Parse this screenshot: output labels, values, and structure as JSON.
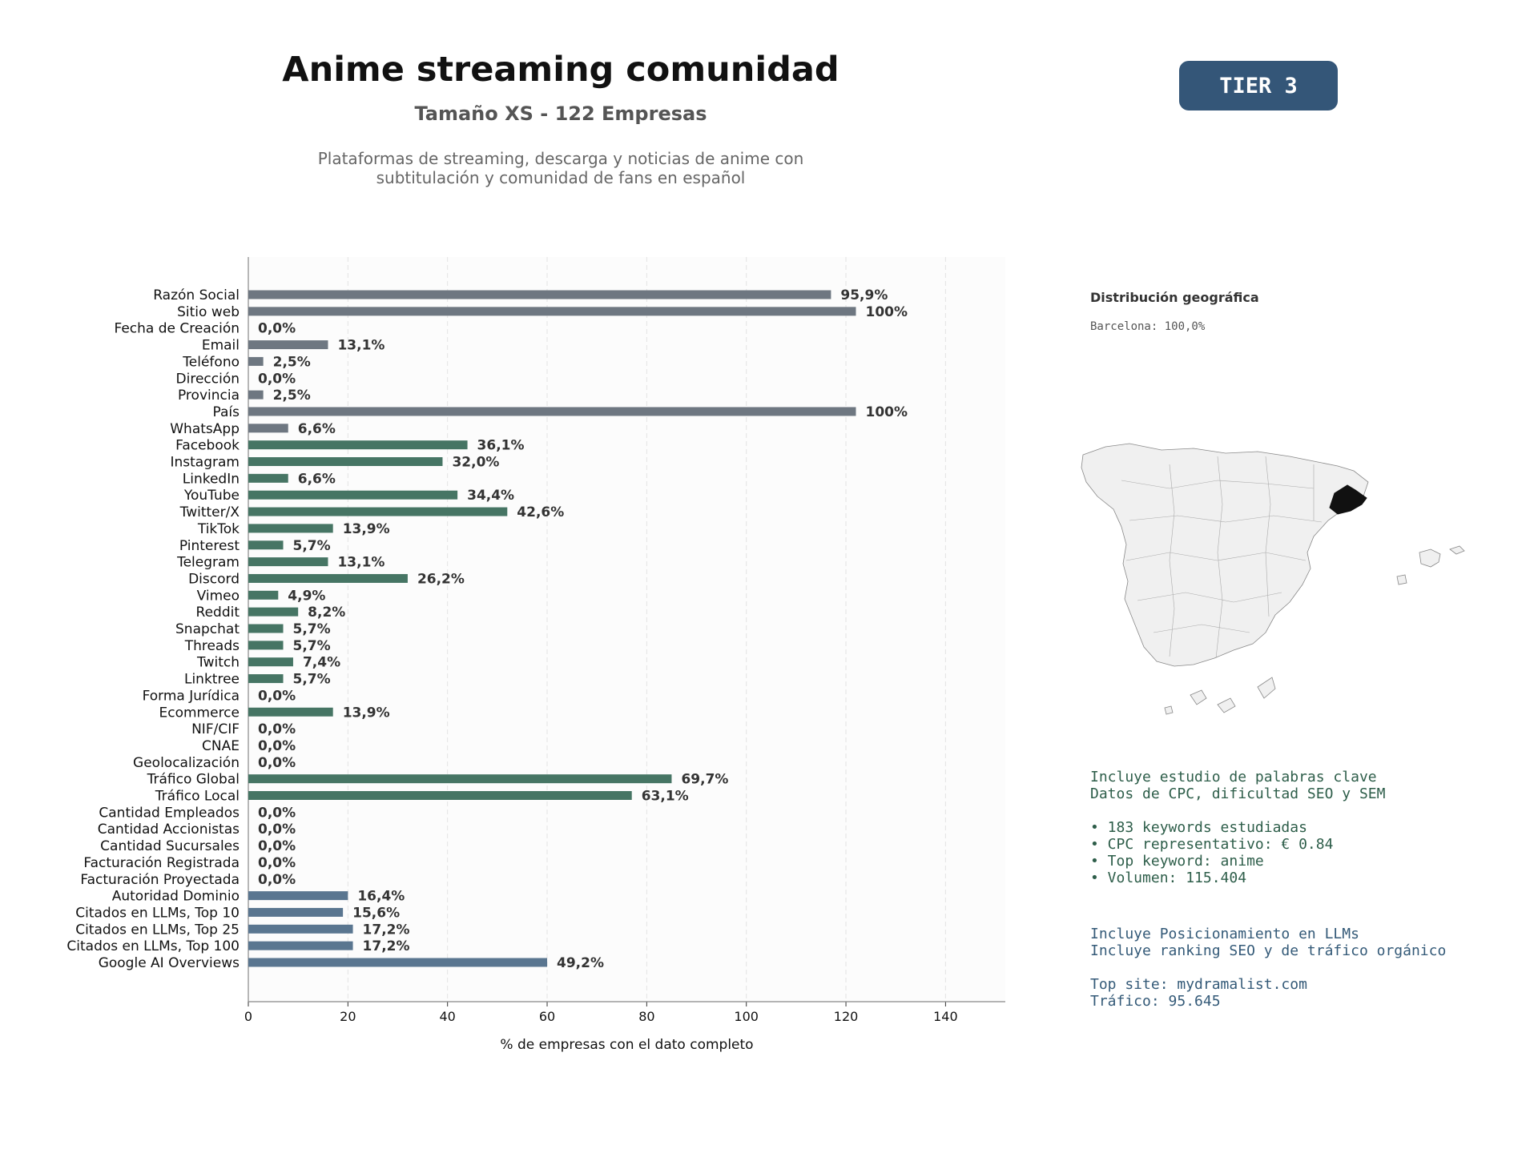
{
  "header": {
    "title": "Anime streaming comunidad",
    "subtitle": "Tamaño XS - 122 Empresas",
    "description_line1": "Plataformas de streaming, descarga y noticias de anime con",
    "description_line2": "subtitulación y comunidad de fans en español",
    "tier": "TIER 3"
  },
  "colors": {
    "gray": "#6e7781",
    "green": "#467564",
    "blue": "#5a7690",
    "tier_bg": "#345678",
    "region_highlight": "#111111",
    "region_fill": "#f0f0f0"
  },
  "chart_data": {
    "type": "bar",
    "orientation": "horizontal",
    "xlabel": "% de empresas con el dato completo",
    "xlim": [
      0,
      152
    ],
    "xticks": [
      0,
      20,
      40,
      60,
      80,
      100,
      120,
      140
    ],
    "grid": true,
    "categories": [
      "Razón Social",
      "Sitio web",
      "Fecha de Creación",
      "Email",
      "Teléfono",
      "Dirección",
      "Provincia",
      "País",
      "WhatsApp",
      "Facebook",
      "Instagram",
      "LinkedIn",
      "YouTube",
      "Twitter/X",
      "TikTok",
      "Pinterest",
      "Telegram",
      "Discord",
      "Vimeo",
      "Reddit",
      "Snapchat",
      "Threads",
      "Twitch",
      "Linktree",
      "Forma Jurídica",
      "Ecommerce",
      "NIF/CIF",
      "CNAE",
      "Geolocalización",
      "Tráfico Global",
      "Tráfico Local",
      "Cantidad Empleados",
      "Cantidad Accionistas",
      "Cantidad Sucursales",
      "Facturación Registrada",
      "Facturación Proyectada",
      "Autoridad Dominio",
      "Citados en LLMs, Top 10",
      "Citados en LLMs, Top 25",
      "Citados en LLMs, Top 100",
      "Google AI Overviews"
    ],
    "values": [
      117,
      122,
      0,
      16,
      3,
      0,
      3,
      122,
      8,
      44,
      39,
      8,
      42,
      52,
      17,
      7,
      16,
      32,
      6,
      10,
      7,
      7,
      9,
      7,
      0,
      17,
      0,
      0,
      0,
      85,
      77,
      0,
      0,
      0,
      0,
      0,
      20,
      19,
      21,
      21,
      60
    ],
    "labels": [
      "95,9%",
      "100%",
      "0,0%",
      "13,1%",
      "2,5%",
      "0,0%",
      "2,5%",
      "100%",
      "6,6%",
      "36,1%",
      "32,0%",
      "6,6%",
      "34,4%",
      "42,6%",
      "13,9%",
      "5,7%",
      "13,1%",
      "26,2%",
      "4,9%",
      "8,2%",
      "5,7%",
      "5,7%",
      "7,4%",
      "5,7%",
      "0,0%",
      "13,9%",
      "0,0%",
      "0,0%",
      "0,0%",
      "69,7%",
      "63,1%",
      "0,0%",
      "0,0%",
      "0,0%",
      "0,0%",
      "0,0%",
      "16,4%",
      "15,6%",
      "17,2%",
      "17,2%",
      "49,2%"
    ],
    "color_groups": [
      "gray",
      "gray",
      "gray",
      "gray",
      "gray",
      "gray",
      "gray",
      "gray",
      "gray",
      "green",
      "green",
      "green",
      "green",
      "green",
      "green",
      "green",
      "green",
      "green",
      "green",
      "green",
      "green",
      "green",
      "green",
      "green",
      "green",
      "green",
      "green",
      "green",
      "green",
      "green",
      "green",
      "green",
      "green",
      "green",
      "green",
      "green",
      "blue",
      "blue",
      "blue",
      "blue",
      "blue"
    ]
  },
  "geo": {
    "title": "Distribución geográfica",
    "item": "Barcelona: 100,0%",
    "highlighted_region": "Barcelona"
  },
  "keywords": {
    "line1": "Incluye estudio de palabras clave",
    "line2": "Datos de CPC, dificultad SEO y SEM",
    "b1": "• 183 keywords estudiadas",
    "b2": "• CPC representativo: € 0.84",
    "b3": "• Top keyword: anime",
    "b4": "• Volumen: 115.404"
  },
  "llm": {
    "line1": "Incluye Posicionamiento en LLMs",
    "line2": "Incluye ranking SEO y de tráfico orgánico",
    "line3": "Top site: mydramalist.com",
    "line4": "Tráfico: 95.645"
  }
}
